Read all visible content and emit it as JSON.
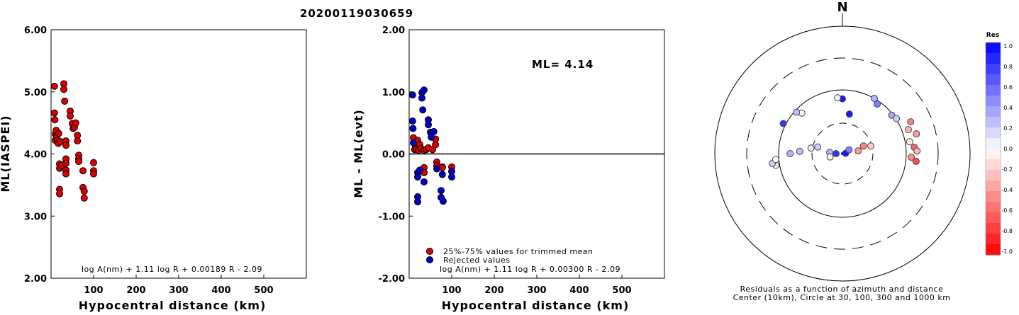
{
  "page_title": "20200119030659",
  "chart_data": [
    {
      "type": "scatter",
      "id": "ml_vs_distance",
      "title": "",
      "xlabel": "Hypocentral distance (km)",
      "ylabel": "ML(IASPEI)",
      "xlim": [
        0,
        600
      ],
      "ylim": [
        2.0,
        6.0
      ],
      "xticks": [
        "100",
        "200",
        "300",
        "400",
        "500"
      ],
      "yticks": [
        "2.00",
        "3.00",
        "4.00",
        "5.00",
        "6.00"
      ],
      "formula": "log A(nm) + 1.11 log R + 0.00189 R - 2.09",
      "series": [
        {
          "color": "#dd0000",
          "points": [
            [
              8,
              5.09
            ],
            [
              8,
              4.66
            ],
            [
              9,
              4.55
            ],
            [
              10,
              4.32
            ],
            [
              10,
              4.22
            ],
            [
              12,
              4.38
            ],
            [
              13,
              4.28
            ],
            [
              15,
              4.22
            ],
            [
              17,
              4.17
            ],
            [
              18,
              4.33
            ],
            [
              20,
              3.84
            ],
            [
              20,
              3.77
            ],
            [
              20,
              3.43
            ],
            [
              20,
              3.36
            ],
            [
              22,
              4.2
            ],
            [
              25,
              3.82
            ],
            [
              30,
              5.13
            ],
            [
              30,
              5.04
            ],
            [
              32,
              4.85
            ],
            [
              35,
              4.21
            ],
            [
              35,
              4.14
            ],
            [
              35,
              3.92
            ],
            [
              35,
              3.85
            ],
            [
              35,
              3.74
            ],
            [
              35,
              3.68
            ],
            [
              45,
              4.69
            ],
            [
              45,
              4.61
            ],
            [
              50,
              4.49
            ],
            [
              52,
              4.41
            ],
            [
              55,
              4.43
            ],
            [
              58,
              4.5
            ],
            [
              62,
              4.3
            ],
            [
              62,
              4.21
            ],
            [
              65,
              3.98
            ],
            [
              65,
              3.92
            ],
            [
              65,
              3.88
            ],
            [
              75,
              3.73
            ],
            [
              75,
              3.46
            ],
            [
              78,
              3.4
            ],
            [
              78,
              3.29
            ],
            [
              100,
              3.86
            ],
            [
              100,
              3.73
            ],
            [
              100,
              3.68
            ]
          ]
        }
      ]
    },
    {
      "type": "scatter",
      "id": "residual_vs_distance",
      "title": "",
      "xlabel": "Hypocentral distance (km)",
      "ylabel": "ML - ML(evt)",
      "xlim": [
        0,
        600
      ],
      "ylim": [
        -2.0,
        2.0
      ],
      "xticks": [
        "100",
        "200",
        "300",
        "400",
        "500"
      ],
      "yticks": [
        "-2.00",
        "-1.00",
        "0.00",
        "1.00",
        "2.00"
      ],
      "annotation": "ML= 4.14",
      "formula": "log A(nm) + 1.11 log R + 0.00300 R - 2.09",
      "legend": [
        {
          "label": "25%-75% values for trimmed mean",
          "color": "#dd0000"
        },
        {
          "label": "Rejected values",
          "color": "#0000cc"
        }
      ],
      "series": [
        {
          "color": "#dd0000",
          "points": [
            [
              10,
              0.26
            ],
            [
              12,
              0.17
            ],
            [
              13,
              0.07
            ],
            [
              15,
              0.12
            ],
            [
              17,
              0.08
            ],
            [
              20,
              0.22
            ],
            [
              22,
              0.06
            ],
            [
              25,
              0.15
            ],
            [
              28,
              0.09
            ],
            [
              35,
              0.06
            ],
            [
              35,
              -0.22
            ],
            [
              35,
              -0.3
            ],
            [
              40,
              0.07
            ],
            [
              45,
              0.1
            ],
            [
              55,
              0.07
            ],
            [
              62,
              0.15
            ],
            [
              62,
              0.24
            ],
            [
              65,
              -0.13
            ],
            [
              65,
              -0.19
            ],
            [
              78,
              -0.21
            ],
            [
              78,
              -0.22
            ],
            [
              100,
              -0.21
            ]
          ]
        },
        {
          "color": "#0000cc",
          "points": [
            [
              8,
              0.95
            ],
            [
              8,
              0.53
            ],
            [
              9,
              0.41
            ],
            [
              10,
              0.18
            ],
            [
              20,
              -0.3
            ],
            [
              20,
              -0.37
            ],
            [
              20,
              -0.69
            ],
            [
              20,
              -0.77
            ],
            [
              25,
              -0.26
            ],
            [
              30,
              0.99
            ],
            [
              30,
              0.9
            ],
            [
              32,
              0.71
            ],
            [
              35,
              1.03
            ],
            [
              35,
              -0.45
            ],
            [
              45,
              0.55
            ],
            [
              45,
              0.47
            ],
            [
              50,
              0.35
            ],
            [
              52,
              0.27
            ],
            [
              58,
              0.36
            ],
            [
              65,
              -0.24
            ],
            [
              75,
              -0.59
            ],
            [
              75,
              -0.7
            ],
            [
              78,
              -0.33
            ],
            [
              80,
              -0.76
            ],
            [
              100,
              -0.28
            ],
            [
              100,
              -0.37
            ]
          ]
        }
      ]
    },
    {
      "type": "polar",
      "id": "azimuth_residuals",
      "north_label": "N",
      "caption_line1": "Residuals as a function of azimuth and distance",
      "caption_line2": "Center (10km), Circle at 30, 100, 300 and 1000 km",
      "colorbar": {
        "title": "Res",
        "ticks": [
          "1.0",
          "0.8",
          "0.6",
          "0.4",
          "0.2",
          "0.0",
          "-0.2",
          "-0.4",
          "-0.6",
          "-0.8",
          "-1.0"
        ]
      },
      "stations": [
        {
          "az": 315,
          "r": 0.9,
          "res": 0.05
        },
        {
          "az": 312,
          "r": 0.97,
          "res": 0.25
        },
        {
          "az": 297,
          "r": 1.04,
          "res": 0.8
        },
        {
          "az": 260,
          "r": 1.06,
          "res": 0.05
        },
        {
          "az": 262,
          "r": 1.11,
          "res": 0.2
        },
        {
          "az": 265,
          "r": 1.05,
          "res": 0.0
        },
        {
          "az": 270,
          "r": 0.82,
          "res": 0.3
        },
        {
          "az": 273,
          "r": 0.67,
          "res": 0.25
        },
        {
          "az": 280,
          "r": 0.5,
          "res": 0.1
        },
        {
          "az": 285,
          "r": 0.4,
          "res": 0.2
        },
        {
          "az": 0,
          "r": 0.86,
          "res": 0.9
        },
        {
          "az": 10,
          "r": 0.63,
          "res": 0.9
        },
        {
          "az": 355,
          "r": 0.88,
          "res": 0.05
        },
        {
          "az": 30,
          "r": 1.0,
          "res": 0.3
        },
        {
          "az": 35,
          "r": 0.95,
          "res": 0.5
        },
        {
          "az": 52,
          "r": 0.98,
          "res": 0.35
        },
        {
          "az": 57,
          "r": 1.01,
          "res": 0.2
        },
        {
          "az": 65,
          "r": 1.18,
          "res": -0.5
        },
        {
          "az": 70,
          "r": 1.1,
          "res": -0.3
        },
        {
          "az": 75,
          "r": 1.2,
          "res": -0.4
        },
        {
          "az": 80,
          "r": 1.07,
          "res": -0.05
        },
        {
          "az": 85,
          "r": 1.13,
          "res": -0.6
        },
        {
          "az": 88,
          "r": 1.17,
          "res": -0.3
        },
        {
          "az": 93,
          "r": 1.08,
          "res": -0.45
        },
        {
          "az": 96,
          "r": 1.16,
          "res": -0.7
        },
        {
          "az": 70,
          "r": 0.35,
          "res": -0.5
        },
        {
          "az": 75,
          "r": 0.46,
          "res": -0.2
        },
        {
          "az": 80,
          "r": 0.25,
          "res": -0.4
        },
        {
          "az": 85,
          "r": 0.05,
          "res": 0.9
        },
        {
          "az": 60,
          "r": 0.12,
          "res": 0.5
        },
        {
          "az": 270,
          "r": 0.1,
          "res": 0.8
        },
        {
          "az": 275,
          "r": 0.2,
          "res": 0.3
        },
        {
          "az": 255,
          "r": 0.2,
          "res": -0.05
        }
      ]
    }
  ]
}
